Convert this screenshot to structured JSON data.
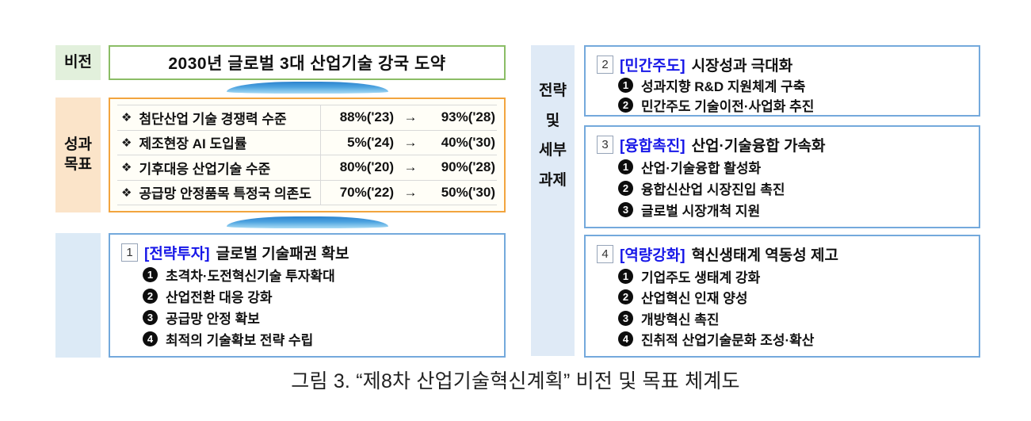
{
  "vision": {
    "label": "비전",
    "title": "2030년 글로벌 3대 산업기술 강국 도약"
  },
  "goals": {
    "label_line1": "성과",
    "label_line2": "목표",
    "bullet": "❖",
    "rows": [
      {
        "name": "첨단산업 기술 경쟁력 수준",
        "from": "88%('23)",
        "arrow": "→",
        "to": "93%('28)"
      },
      {
        "name": "제조현장 AI 도입률",
        "from": "5%('24)",
        "arrow": "→",
        "to": "40%('30)"
      },
      {
        "name": "기후대응 산업기술 수준",
        "from": "80%('20)",
        "arrow": "→",
        "to": "90%('28)"
      },
      {
        "name": "공급망 안정품목 특정국 의존도",
        "from": "70%('22)",
        "arrow": "→",
        "to": "50%('30)"
      }
    ]
  },
  "right_label": {
    "line1": "전략",
    "line2": "및",
    "line3": "세부",
    "line4": "과제"
  },
  "strategies": [
    {
      "num": "1",
      "tag": "[전략투자]",
      "title": "글로벌 기술패권 확보",
      "items": [
        {
          "n": "1",
          "text": "초격차·도전혁신기술 투자확대"
        },
        {
          "n": "2",
          "text": "산업전환 대응 강화"
        },
        {
          "n": "3",
          "text": "공급망 안정 확보"
        },
        {
          "n": "4",
          "text": "최적의 기술확보 전략 수립"
        }
      ]
    },
    {
      "num": "2",
      "tag": "[민간주도]",
      "title": "시장성과 극대화",
      "items": [
        {
          "n": "1",
          "text": "성과지향 R&D 지원체계 구축"
        },
        {
          "n": "2",
          "text": "민간주도 기술이전·사업화 추진"
        }
      ]
    },
    {
      "num": "3",
      "tag": "[융합촉진]",
      "title": "산업·기술융합 가속화",
      "items": [
        {
          "n": "1",
          "text": "산업·기술융합 활성화"
        },
        {
          "n": "2",
          "text": "융합신산업 시장진입 촉진"
        },
        {
          "n": "3",
          "text": "글로벌 시장개척 지원"
        }
      ]
    },
    {
      "num": "4",
      "tag": "[역량강화]",
      "title": "혁신생태계 역동성 제고",
      "items": [
        {
          "n": "1",
          "text": "기업주도 생태계 강화"
        },
        {
          "n": "2",
          "text": "산업혁신 인재 양성"
        },
        {
          "n": "3",
          "text": "개방혁신 촉진"
        },
        {
          "n": "4",
          "text": "진취적 산업기술문화 조성·확산"
        }
      ]
    }
  ],
  "caption": "그림 3. “제8차 산업기술혁신계획” 비전 및 목표 체계도",
  "colors": {
    "vision_border": "#8bbd66",
    "vision_label_bg": "#e2f0dc",
    "goals_border": "#f2a43e",
    "goals_label_bg": "#fbe4c9",
    "strategy_border": "#74a9dc",
    "right_label_bg": "#dfeaf6",
    "tag_text": "#1717e8",
    "arrow_blue": "#2c83ce"
  }
}
